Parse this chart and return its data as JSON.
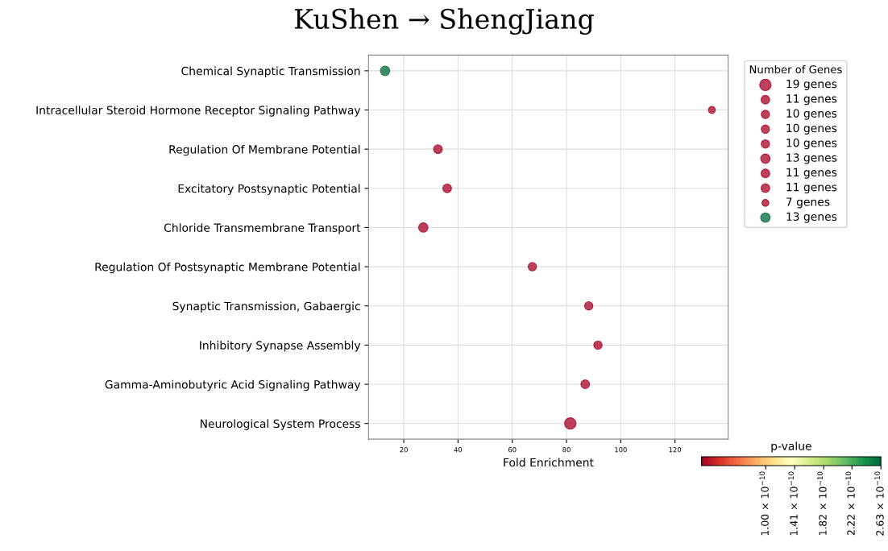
{
  "chart_data": {
    "type": "bubble",
    "orientation": "horizontal",
    "title": "KuShen → ShengJiang",
    "xlabel": "Fold Enrichment",
    "legend_title": "Number of Genes",
    "clabel": "p-value",
    "categories": [
      "Chemical Synaptic Transmission",
      "Intracellular Steroid Hormone Receptor Signaling Pathway",
      "Regulation Of Membrane Potential",
      "Excitatory Postsynaptic Potential",
      "Chloride Transmembrane Transport",
      "Regulation Of Postsynaptic Membrane Potential",
      "Synaptic Transmission, Gabaergic",
      "Inhibitory Synapse Assembly",
      "Gamma-Aminobutyric Acid Signaling Pathway",
      "Neurological System Process"
    ],
    "series": [
      {
        "name": "19 genes",
        "values": [
          null,
          null,
          null,
          null,
          null,
          null,
          null,
          null,
          null,
          81.4
        ],
        "sizes": [
          null,
          null,
          null,
          null,
          null,
          null,
          null,
          null,
          null,
          1
        ],
        "cvalues": [
          null,
          null,
          null,
          null,
          null,
          null,
          null,
          null,
          null,
          1e-11
        ]
      },
      {
        "name": "11 genes",
        "values": [
          null,
          null,
          null,
          null,
          null,
          null,
          null,
          null,
          86.9,
          null
        ],
        "sizes": [
          null,
          null,
          null,
          null,
          null,
          null,
          null,
          null,
          0.58,
          null
        ],
        "cvalues": [
          null,
          null,
          null,
          null,
          null,
          null,
          null,
          null,
          1e-11,
          null
        ]
      },
      {
        "name": "10 genes",
        "values": [
          null,
          null,
          null,
          null,
          null,
          null,
          null,
          91.6,
          null,
          null
        ],
        "sizes": [
          null,
          null,
          null,
          null,
          null,
          null,
          null,
          0.53,
          null,
          null
        ],
        "cvalues": [
          null,
          null,
          null,
          null,
          null,
          null,
          null,
          1e-11,
          null,
          null
        ]
      },
      {
        "name": "10 genes",
        "values": [
          null,
          null,
          null,
          null,
          null,
          null,
          88.2,
          null,
          null,
          null
        ],
        "sizes": [
          null,
          null,
          null,
          null,
          null,
          null,
          0.53,
          null,
          null,
          null
        ],
        "cvalues": [
          null,
          null,
          null,
          null,
          null,
          null,
          1e-11,
          null,
          null,
          null
        ]
      },
      {
        "name": "10 genes",
        "values": [
          null,
          null,
          null,
          null,
          null,
          67.4,
          null,
          null,
          null,
          null
        ],
        "sizes": [
          null,
          null,
          null,
          null,
          null,
          0.53,
          null,
          null,
          null,
          null
        ],
        "cvalues": [
          null,
          null,
          null,
          null,
          null,
          1e-11,
          null,
          null,
          null,
          null
        ]
      },
      {
        "name": "13 genes",
        "values": [
          null,
          null,
          null,
          null,
          27.2,
          null,
          null,
          null,
          null,
          null
        ],
        "sizes": [
          null,
          null,
          null,
          null,
          0.68,
          null,
          null,
          null,
          null,
          null
        ],
        "cvalues": [
          null,
          null,
          null,
          null,
          1e-11,
          null,
          null,
          null,
          null,
          null
        ]
      },
      {
        "name": "11 genes",
        "values": [
          null,
          null,
          null,
          36.0,
          null,
          null,
          null,
          null,
          null,
          null
        ],
        "sizes": [
          null,
          null,
          null,
          0.58,
          null,
          null,
          null,
          null,
          null,
          null
        ],
        "cvalues": [
          null,
          null,
          null,
          1e-11,
          null,
          null,
          null,
          null,
          null,
          null
        ]
      },
      {
        "name": "11 genes",
        "values": [
          null,
          null,
          32.6,
          null,
          null,
          null,
          null,
          null,
          null,
          null
        ],
        "sizes": [
          null,
          null,
          0.58,
          null,
          null,
          null,
          null,
          null,
          null,
          null
        ],
        "cvalues": [
          null,
          null,
          1e-11,
          null,
          null,
          null,
          null,
          null,
          null,
          null
        ]
      },
      {
        "name": "7 genes",
        "values": [
          null,
          133.6,
          null,
          null,
          null,
          null,
          null,
          null,
          null,
          null
        ],
        "sizes": [
          null,
          0.37,
          null,
          null,
          null,
          null,
          null,
          null,
          null,
          null
        ],
        "cvalues": [
          null,
          1e-11,
          null,
          null,
          null,
          null,
          null,
          null,
          null,
          null
        ]
      },
      {
        "name": "13 genes",
        "values": [
          13.1,
          null,
          null,
          null,
          null,
          null,
          null,
          null,
          null,
          null
        ],
        "sizes": [
          0.68,
          null,
          null,
          null,
          null,
          null,
          null,
          null,
          null,
          null
        ],
        "cvalues": [
          2.63e-10,
          null,
          null,
          null,
          null,
          null,
          null,
          null,
          null,
          null
        ]
      }
    ],
    "xlim": [
      7,
      139.6
    ],
    "xticks": [
      20,
      40,
      60,
      80,
      100,
      120
    ],
    "clim": [
      9e-12,
      2.63e-10
    ],
    "cticks": [
      {
        "value": 1e-10,
        "label": "1.00 × 10$^{−10}$"
      },
      {
        "value": 1.41e-10,
        "label": "1.41 × 10$^{−10}$"
      },
      {
        "value": 1.82e-10,
        "label": "1.82 × 10$^{−10}$"
      },
      {
        "value": 2.22e-10,
        "label": "2.22 × 10$^{−10}$"
      },
      {
        "value": 2.63e-10,
        "label": "2.63 × 10$^{−10}$"
      }
    ],
    "grid": true,
    "legend": "top right"
  }
}
